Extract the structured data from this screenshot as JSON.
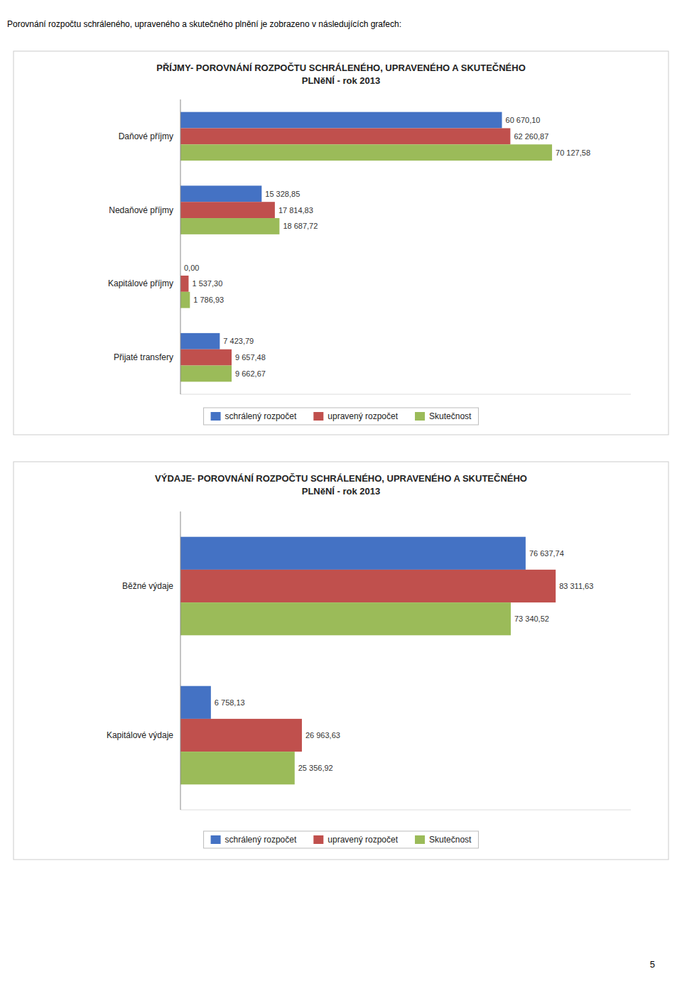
{
  "title": "Porovnání rozpočtu schráleného, upraveného a skutečného plnění je zobrazeno v následujících grafech:",
  "page_number": "5",
  "chart_data": [
    {
      "type": "bar",
      "orientation": "horizontal",
      "title": "PŘÍJMY- POROVNÁNÍ ROZPOČTU SCHRÁLENÉHO, UPRAVENÉHO A SKUTEČNÉHO",
      "subtitle": "PLNěNÍ - rok 2013",
      "categories": [
        "Daňové příjmy",
        "Nedaňové příjmy",
        "Kapitálové příjmy",
        "Přijaté transfery"
      ],
      "series": [
        {
          "name": "schrálený rozpočet",
          "color": "#4472C4",
          "values": [
            60670.1,
            15328.85,
            0.0,
            7423.79
          ],
          "value_labels": [
            "60 670,10",
            "15 328,85",
            "0,00",
            "7 423,79"
          ]
        },
        {
          "name": "upravený rozpočet",
          "color": "#C0504D",
          "values": [
            62260.87,
            17814.83,
            1537.3,
            9657.48
          ],
          "value_labels": [
            "62 260,87",
            "17 814,83",
            "1 537,30",
            "9 657,48"
          ]
        },
        {
          "name": "Skutečnost",
          "color": "#9BBB59",
          "values": [
            70127.58,
            18687.72,
            1786.93,
            9662.67
          ],
          "value_labels": [
            "70 127,58",
            "18 687,72",
            "1 786,93",
            "9 662,67"
          ]
        }
      ],
      "xlim": [
        0,
        85000
      ],
      "grid": false,
      "legend": "bottom",
      "data_labels": true,
      "tick_labels": "y"
    },
    {
      "type": "bar",
      "orientation": "horizontal",
      "title": "VÝDAJE- POROVNÁNÍ ROZPOČTU SCHRÁLENÉHO, UPRAVENÉHO A SKUTEČNÉHO",
      "subtitle": "PLNěNÍ - rok 2013",
      "categories": [
        "Běžné výdaje",
        "Kapitálové výdaje"
      ],
      "series": [
        {
          "name": "schrálený rozpočet",
          "color": "#4472C4",
          "values": [
            76637.74,
            6758.13
          ],
          "value_labels": [
            "76 637,74",
            "6 758,13"
          ]
        },
        {
          "name": "upravený rozpočet",
          "color": "#C0504D",
          "values": [
            83311.63,
            26963.63
          ],
          "value_labels": [
            "83 311,63",
            "26 963,63"
          ]
        },
        {
          "name": "Skutečnost",
          "color": "#9BBB59",
          "values": [
            73340.52,
            25356.92
          ],
          "value_labels": [
            "73 340,52",
            "25 356,92"
          ]
        }
      ],
      "xlim": [
        0,
        100000
      ],
      "grid": false,
      "legend": "bottom",
      "data_labels": true,
      "tick_labels": "y"
    }
  ]
}
